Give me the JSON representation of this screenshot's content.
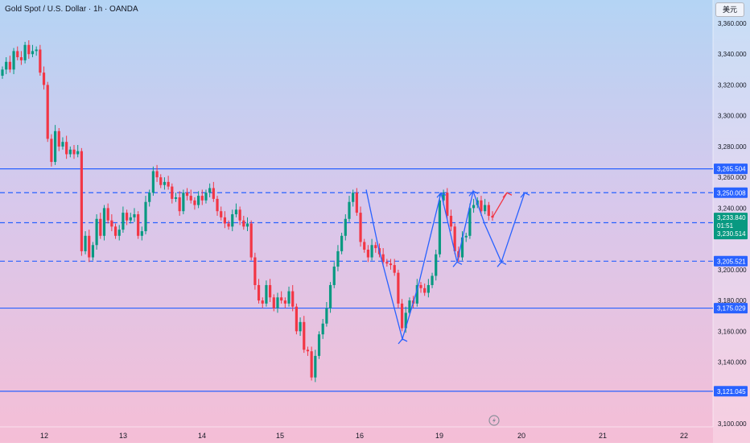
{
  "header": {
    "title": "Gold Spot / U.S. Dollar · 1h · OANDA",
    "currency_button": "美元"
  },
  "price_labels": {
    "resistance_top": "3,265.504",
    "upper_dashed": "3,250.008",
    "current_price": "3,233.840",
    "countdown": "01:51",
    "middle_dashed": "3,230.514",
    "lower_dashed": "3,205.521",
    "support_mid": "3,175.029",
    "support_bottom": "3,121.045"
  },
  "colors": {
    "bull": "#089981",
    "bear": "#f23645",
    "level_line": "#2962ff",
    "projection_blue": "#2962ff",
    "projection_red": "#f23645",
    "label_bg": "#2962ff",
    "price_bg": "#089981"
  },
  "chart_data": {
    "type": "candlestick",
    "symbol": "Gold Spot / U.S. Dollar",
    "interval": "1h",
    "exchange": "OANDA",
    "y_ticks": [
      "3,360.000",
      "3,340.000",
      "3,320.000",
      "3,300.000",
      "3,280.000",
      "3,260.000",
      "3,240.000",
      "3,200.000",
      "3,180.000",
      "3,160.000",
      "3,140.000",
      "3,100.000"
    ],
    "y_range": [
      3100,
      3360
    ],
    "x_ticks": [
      "12",
      "13",
      "14",
      "15",
      "16",
      "19",
      "20",
      "21",
      "22"
    ],
    "horizontal_levels": [
      {
        "value": 3265.504,
        "style": "solid"
      },
      {
        "value": 3250.008,
        "style": "dashed"
      },
      {
        "value": 3230.514,
        "style": "dashed"
      },
      {
        "value": 3205.521,
        "style": "dashed"
      },
      {
        "value": 3175.029,
        "style": "solid"
      },
      {
        "value": 3121.045,
        "style": "solid"
      }
    ],
    "current_price": 3233.84,
    "candles_close": [
      3330,
      3335,
      3330,
      3342,
      3338,
      3336,
      3346,
      3340,
      3342,
      3343,
      3328,
      3320,
      3285,
      3270,
      3290,
      3280,
      3283,
      3275,
      3278,
      3275,
      3277,
      3212,
      3222,
      3208,
      3216,
      3233,
      3222,
      3240,
      3232,
      3228,
      3222,
      3226,
      3237,
      3232,
      3234,
      3236,
      3222,
      3225,
      3244,
      3250,
      3264,
      3260,
      3255,
      3257,
      3254,
      3246,
      3247,
      3238,
      3250,
      3248,
      3245,
      3242,
      3248,
      3245,
      3250,
      3253,
      3246,
      3238,
      3234,
      3230,
      3228,
      3236,
      3239,
      3232,
      3228,
      3230,
      3208,
      3190,
      3180,
      3178,
      3190,
      3182,
      3175,
      3182,
      3180,
      3178,
      3186,
      3176,
      3160,
      3166,
      3148,
      3147,
      3130,
      3144,
      3158,
      3165,
      3175,
      3190,
      3202,
      3212,
      3222,
      3233,
      3244,
      3250,
      3237,
      3218,
      3213,
      3208,
      3216,
      3214,
      3210,
      3205,
      3204,
      3203,
      3198,
      3178,
      3162,
      3172,
      3180,
      3178,
      3190,
      3188,
      3185,
      3190,
      3196,
      3210,
      3245,
      3250,
      3235,
      3228,
      3212,
      3208,
      3221,
      3222,
      3240,
      3242,
      3245,
      3238,
      3242,
      3235,
      3233.84
    ]
  }
}
